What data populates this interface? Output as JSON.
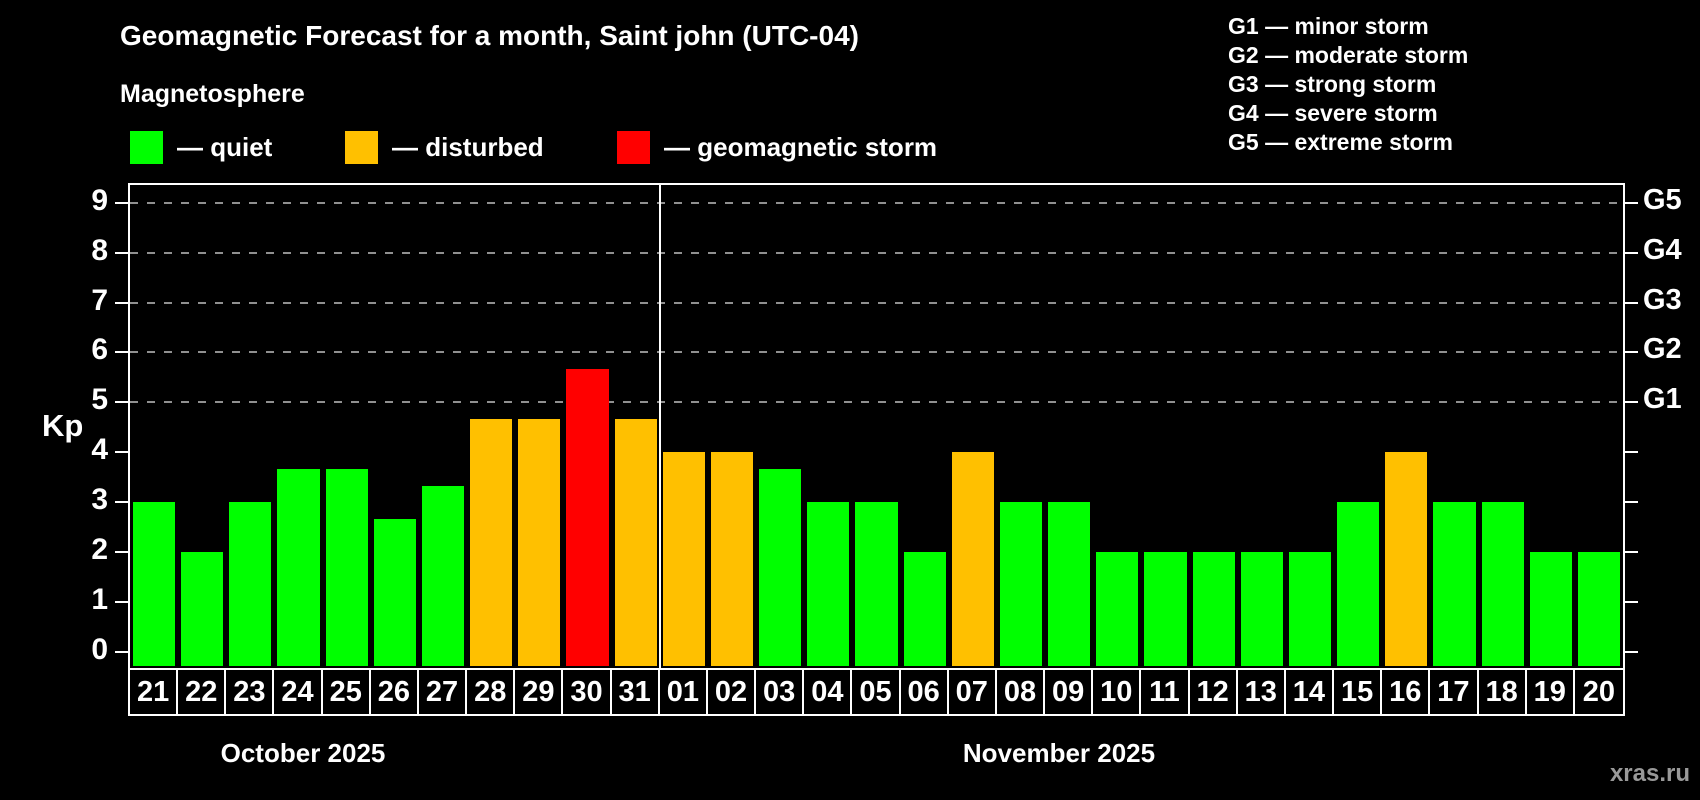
{
  "title": "Geomagnetic Forecast for a month, Saint john (UTC-04)",
  "subtitle": "Magnetosphere",
  "legend": {
    "items": [
      {
        "key": "quiet",
        "label": "— quiet",
        "color": "#00ff00"
      },
      {
        "key": "disturbed",
        "label": "— disturbed",
        "color": "#ffc000"
      },
      {
        "key": "storm",
        "label": "— geomagnetic storm",
        "color": "#ff0000"
      }
    ]
  },
  "g_legend": [
    "G1 — minor storm",
    "G2 — moderate storm",
    "G3 — strong storm",
    "G4 — severe storm",
    "G5 — extreme storm"
  ],
  "watermark": "xras.ru",
  "chart_data": {
    "type": "bar",
    "ylabel": "Kp",
    "ylim": [
      -0.33,
      9.36
    ],
    "y_ticks": [
      0,
      1,
      2,
      3,
      4,
      5,
      6,
      7,
      8,
      9
    ],
    "g_levels": [
      5,
      6,
      7,
      8,
      9
    ],
    "g_axis_labels": [
      {
        "text": "G1",
        "kp": 5
      },
      {
        "text": "G2",
        "kp": 6
      },
      {
        "text": "G3",
        "kp": 7
      },
      {
        "text": "G4",
        "kp": 8
      },
      {
        "text": "G5",
        "kp": 9
      }
    ],
    "grid": "dashed-horizontal-at-g-levels",
    "legend_position": "top",
    "colors": {
      "quiet": "#00ff00",
      "disturbed": "#ffc000",
      "storm": "#ff0000"
    },
    "months": [
      {
        "label": "October 2025",
        "days": 11,
        "label_center_x": 303
      },
      {
        "label": "November 2025",
        "days": 20,
        "label_center_x": 1059
      }
    ],
    "bars": [
      {
        "day": "21",
        "kp": 3.0,
        "status": "quiet"
      },
      {
        "day": "22",
        "kp": 2.0,
        "status": "quiet"
      },
      {
        "day": "23",
        "kp": 3.0,
        "status": "quiet"
      },
      {
        "day": "24",
        "kp": 3.67,
        "status": "quiet"
      },
      {
        "day": "25",
        "kp": 3.67,
        "status": "quiet"
      },
      {
        "day": "26",
        "kp": 2.67,
        "status": "quiet"
      },
      {
        "day": "27",
        "kp": 3.33,
        "status": "quiet"
      },
      {
        "day": "28",
        "kp": 4.67,
        "status": "disturbed"
      },
      {
        "day": "29",
        "kp": 4.67,
        "status": "disturbed"
      },
      {
        "day": "30",
        "kp": 5.67,
        "status": "storm"
      },
      {
        "day": "31",
        "kp": 4.67,
        "status": "disturbed"
      },
      {
        "day": "01",
        "kp": 4.0,
        "status": "disturbed"
      },
      {
        "day": "02",
        "kp": 4.0,
        "status": "disturbed"
      },
      {
        "day": "03",
        "kp": 3.67,
        "status": "quiet"
      },
      {
        "day": "04",
        "kp": 3.0,
        "status": "quiet"
      },
      {
        "day": "05",
        "kp": 3.0,
        "status": "quiet"
      },
      {
        "day": "06",
        "kp": 2.0,
        "status": "quiet"
      },
      {
        "day": "07",
        "kp": 4.0,
        "status": "disturbed"
      },
      {
        "day": "08",
        "kp": 3.0,
        "status": "quiet"
      },
      {
        "day": "09",
        "kp": 3.0,
        "status": "quiet"
      },
      {
        "day": "10",
        "kp": 2.0,
        "status": "quiet"
      },
      {
        "day": "11",
        "kp": 2.0,
        "status": "quiet"
      },
      {
        "day": "12",
        "kp": 2.0,
        "status": "quiet"
      },
      {
        "day": "13",
        "kp": 2.0,
        "status": "quiet"
      },
      {
        "day": "14",
        "kp": 2.0,
        "status": "quiet"
      },
      {
        "day": "15",
        "kp": 3.0,
        "status": "quiet"
      },
      {
        "day": "16",
        "kp": 4.0,
        "status": "disturbed"
      },
      {
        "day": "17",
        "kp": 3.0,
        "status": "quiet"
      },
      {
        "day": "18",
        "kp": 3.0,
        "status": "quiet"
      },
      {
        "day": "19",
        "kp": 2.0,
        "status": "quiet"
      },
      {
        "day": "20",
        "kp": 2.0,
        "status": "quiet"
      }
    ]
  }
}
